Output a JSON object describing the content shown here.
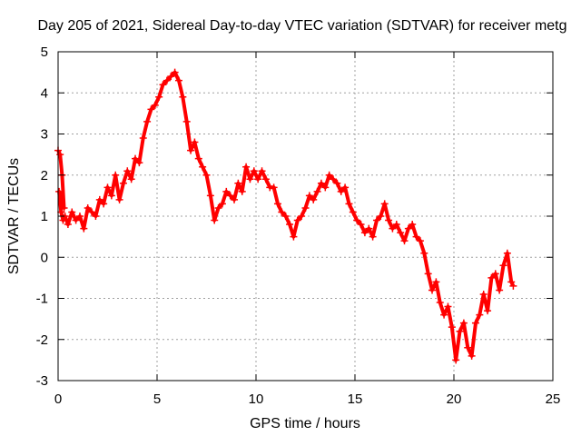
{
  "chart_data": {
    "type": "scatter",
    "title": "Day 205 of 2021, Sidereal Day-to-day VTEC variation (SDTVAR) for receiver metg",
    "xlabel": "GPS time / hours",
    "ylabel": "SDTVAR / TECUs",
    "xlim": [
      0,
      25
    ],
    "ylim": [
      -3,
      5
    ],
    "xticks": [
      "0",
      "5",
      "10",
      "15",
      "20",
      "25"
    ],
    "yticks": [
      "-3",
      "-2",
      "-1",
      "0",
      "1",
      "2",
      "3",
      "4",
      "5"
    ],
    "grid": true,
    "marker": "plus",
    "color": "#ff0000",
    "series": [
      {
        "name": "SDTVAR",
        "x": [
          0.0,
          0.1,
          0.2,
          0.3,
          0.05,
          0.15,
          0.25,
          0.35,
          0.5,
          0.7,
          0.9,
          1.1,
          1.3,
          1.5,
          1.7,
          1.9,
          2.1,
          2.3,
          2.5,
          2.7,
          2.9,
          3.1,
          3.3,
          3.5,
          3.7,
          3.9,
          4.1,
          4.3,
          4.5,
          4.7,
          4.9,
          5.1,
          5.3,
          5.5,
          5.7,
          5.9,
          6.1,
          6.3,
          6.5,
          6.7,
          6.9,
          7.1,
          7.3,
          7.5,
          7.7,
          7.9,
          8.1,
          8.3,
          8.5,
          8.7,
          8.9,
          9.1,
          9.3,
          9.5,
          9.7,
          9.9,
          10.1,
          10.3,
          10.5,
          10.7,
          10.9,
          11.1,
          11.3,
          11.5,
          11.7,
          11.9,
          12.1,
          12.3,
          12.5,
          12.7,
          12.9,
          13.1,
          13.3,
          13.5,
          13.7,
          13.9,
          14.1,
          14.3,
          14.5,
          14.7,
          14.9,
          15.1,
          15.3,
          15.5,
          15.7,
          15.9,
          16.1,
          16.3,
          16.5,
          16.7,
          16.9,
          17.1,
          17.3,
          17.5,
          17.7,
          17.9,
          18.1,
          18.3,
          18.5,
          18.7,
          18.9,
          19.1,
          19.3,
          19.5,
          19.7,
          19.9,
          20.1,
          20.3,
          20.5,
          20.7,
          20.9,
          21.1,
          21.3,
          21.5,
          21.7,
          21.9,
          22.1,
          22.3,
          22.5,
          22.7,
          22.9,
          23.0
        ],
        "y": [
          2.6,
          2.5,
          2.0,
          1.2,
          1.6,
          1.1,
          0.9,
          1.0,
          0.8,
          1.1,
          0.9,
          1.0,
          0.7,
          1.2,
          1.1,
          1.0,
          1.4,
          1.3,
          1.7,
          1.5,
          2.0,
          1.4,
          1.8,
          2.1,
          1.9,
          2.4,
          2.3,
          2.9,
          3.3,
          3.6,
          3.7,
          3.9,
          4.2,
          4.3,
          4.4,
          4.5,
          4.3,
          3.9,
          3.3,
          2.6,
          2.8,
          2.4,
          2.2,
          2.0,
          1.5,
          0.9,
          1.2,
          1.3,
          1.6,
          1.5,
          1.4,
          1.8,
          1.6,
          2.2,
          1.9,
          2.1,
          1.9,
          2.1,
          1.9,
          1.7,
          1.7,
          1.3,
          1.1,
          1.0,
          0.8,
          0.5,
          0.9,
          1.0,
          1.2,
          1.5,
          1.4,
          1.6,
          1.8,
          1.7,
          2.0,
          1.9,
          1.8,
          1.6,
          1.7,
          1.3,
          1.1,
          0.9,
          0.8,
          0.6,
          0.7,
          0.5,
          0.9,
          1.0,
          1.3,
          0.9,
          0.7,
          0.8,
          0.6,
          0.4,
          0.7,
          0.8,
          0.5,
          0.4,
          0.1,
          -0.4,
          -0.8,
          -0.6,
          -1.1,
          -1.4,
          -1.2,
          -1.7,
          -2.5,
          -1.8,
          -1.6,
          -2.2,
          -2.4,
          -1.6,
          -1.4,
          -0.9,
          -1.3,
          -0.5,
          -0.4,
          -0.8,
          -0.2,
          0.1,
          -0.6,
          -0.7
        ]
      }
    ]
  }
}
